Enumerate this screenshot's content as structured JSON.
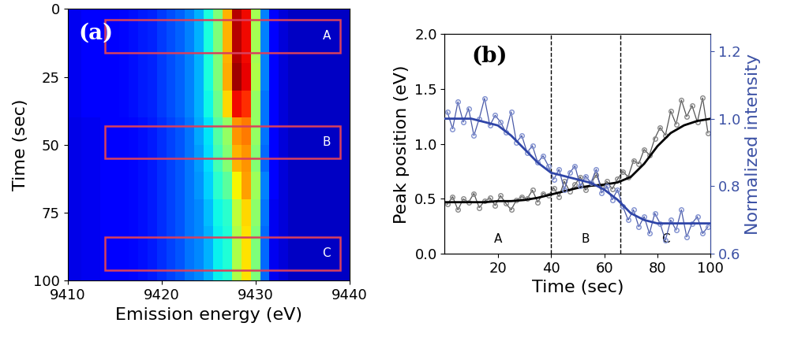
{
  "chart_data": [
    {
      "type": "heatmap",
      "label": "(a)",
      "xlabel": "Emission energy (eV)",
      "ylabel": "Time (sec)",
      "xlim": [
        9410,
        9440
      ],
      "xticks": [
        9410,
        9420,
        9430,
        9440
      ],
      "ylim": [
        100,
        0
      ],
      "yticks": [
        0,
        25,
        50,
        75,
        100
      ],
      "color_range": [
        0,
        1
      ],
      "energies": [
        9410,
        9411,
        9412,
        9413,
        9414,
        9415,
        9416,
        9417,
        9418,
        9419,
        9420,
        9421,
        9422,
        9423,
        9424,
        9425,
        9426,
        9427,
        9428,
        9429,
        9430,
        9431,
        9432,
        9433,
        9434,
        9435,
        9436,
        9437,
        9438,
        9439,
        9440
      ],
      "times": [
        5,
        15,
        25,
        35,
        45,
        55,
        65,
        75,
        85,
        95
      ],
      "cells": [
        [
          0.1,
          0.1,
          0.11,
          0.11,
          0.12,
          0.12,
          0.13,
          0.14,
          0.15,
          0.16,
          0.18,
          0.2,
          0.22,
          0.25,
          0.3,
          0.38,
          0.5,
          0.72,
          0.95,
          0.9,
          0.55,
          0.25,
          0.12,
          0.08,
          0.06,
          0.06,
          0.06,
          0.06,
          0.06,
          0.06,
          0.06
        ],
        [
          0.1,
          0.1,
          0.11,
          0.11,
          0.12,
          0.12,
          0.13,
          0.14,
          0.15,
          0.16,
          0.18,
          0.2,
          0.22,
          0.25,
          0.3,
          0.38,
          0.5,
          0.72,
          0.95,
          0.9,
          0.55,
          0.25,
          0.12,
          0.08,
          0.06,
          0.06,
          0.06,
          0.06,
          0.06,
          0.06,
          0.06
        ],
        [
          0.1,
          0.1,
          0.11,
          0.11,
          0.12,
          0.12,
          0.13,
          0.14,
          0.15,
          0.16,
          0.18,
          0.2,
          0.22,
          0.25,
          0.3,
          0.38,
          0.5,
          0.73,
          0.97,
          0.91,
          0.56,
          0.25,
          0.12,
          0.08,
          0.06,
          0.06,
          0.06,
          0.06,
          0.06,
          0.06,
          0.06
        ],
        [
          0.1,
          0.1,
          0.11,
          0.11,
          0.12,
          0.12,
          0.13,
          0.14,
          0.15,
          0.16,
          0.18,
          0.2,
          0.22,
          0.25,
          0.3,
          0.37,
          0.48,
          0.68,
          0.9,
          0.86,
          0.53,
          0.24,
          0.12,
          0.08,
          0.06,
          0.06,
          0.06,
          0.06,
          0.06,
          0.06,
          0.06
        ],
        [
          0.09,
          0.09,
          0.1,
          0.1,
          0.11,
          0.11,
          0.12,
          0.13,
          0.14,
          0.15,
          0.17,
          0.19,
          0.21,
          0.24,
          0.29,
          0.35,
          0.45,
          0.53,
          0.75,
          0.78,
          0.53,
          0.24,
          0.11,
          0.08,
          0.06,
          0.06,
          0.06,
          0.06,
          0.06,
          0.06,
          0.06
        ],
        [
          0.09,
          0.09,
          0.1,
          0.1,
          0.11,
          0.11,
          0.12,
          0.13,
          0.14,
          0.15,
          0.17,
          0.19,
          0.21,
          0.24,
          0.28,
          0.34,
          0.43,
          0.51,
          0.72,
          0.75,
          0.51,
          0.23,
          0.11,
          0.08,
          0.06,
          0.06,
          0.06,
          0.06,
          0.06,
          0.06,
          0.06
        ],
        [
          0.09,
          0.09,
          0.1,
          0.1,
          0.11,
          0.11,
          0.12,
          0.13,
          0.14,
          0.15,
          0.17,
          0.19,
          0.21,
          0.24,
          0.27,
          0.33,
          0.4,
          0.46,
          0.65,
          0.74,
          0.54,
          0.25,
          0.11,
          0.08,
          0.06,
          0.06,
          0.06,
          0.06,
          0.06,
          0.06,
          0.06
        ],
        [
          0.09,
          0.09,
          0.1,
          0.1,
          0.11,
          0.11,
          0.12,
          0.13,
          0.14,
          0.15,
          0.17,
          0.19,
          0.21,
          0.24,
          0.26,
          0.31,
          0.37,
          0.4,
          0.58,
          0.68,
          0.52,
          0.24,
          0.1,
          0.08,
          0.06,
          0.06,
          0.06,
          0.06,
          0.06,
          0.06,
          0.06
        ],
        [
          0.09,
          0.09,
          0.1,
          0.1,
          0.11,
          0.11,
          0.12,
          0.13,
          0.14,
          0.15,
          0.17,
          0.19,
          0.21,
          0.24,
          0.26,
          0.3,
          0.36,
          0.39,
          0.56,
          0.67,
          0.5,
          0.23,
          0.1,
          0.08,
          0.06,
          0.06,
          0.06,
          0.06,
          0.06,
          0.06,
          0.06
        ],
        [
          0.09,
          0.09,
          0.1,
          0.1,
          0.11,
          0.11,
          0.12,
          0.13,
          0.14,
          0.15,
          0.17,
          0.19,
          0.21,
          0.24,
          0.26,
          0.3,
          0.36,
          0.39,
          0.56,
          0.67,
          0.5,
          0.23,
          0.1,
          0.08,
          0.06,
          0.06,
          0.06,
          0.06,
          0.06,
          0.06,
          0.06
        ]
      ],
      "regions": [
        {
          "label": "A",
          "x": [
            9414,
            9439
          ],
          "y": [
            4,
            16
          ]
        },
        {
          "label": "B",
          "x": [
            9414,
            9439
          ],
          "y": [
            43,
            55
          ]
        },
        {
          "label": "C",
          "x": [
            9414,
            9439
          ],
          "y": [
            84,
            96
          ]
        }
      ]
    },
    {
      "type": "line",
      "label": "(b)",
      "xlabel": "Time (sec)",
      "ylabel": "Peak position (eV)",
      "y2label": "Normalized intensity",
      "xlim": [
        0,
        100
      ],
      "xticks": [
        20,
        40,
        60,
        80,
        100
      ],
      "ylim": [
        0,
        2
      ],
      "yticks": [
        {
          "value": 0,
          "label": "0.0"
        },
        {
          "value": 0.5,
          "label": "0.5"
        },
        {
          "value": 1,
          "label": "1.0"
        },
        {
          "value": 1.5,
          "label": "1.5"
        },
        {
          "value": 2,
          "label": "2.0"
        }
      ],
      "y2lim": [
        0.6,
        1.25
      ],
      "y2ticks": [
        0.6,
        0.8,
        {
          "value": 1,
          "label": "1.0"
        },
        1.2
      ],
      "regions": [
        {
          "label": "A",
          "x": [
            0,
            40
          ]
        },
        {
          "label": "B",
          "x": [
            40,
            66
          ]
        },
        {
          "label": "C",
          "x": [
            66,
            100
          ]
        }
      ],
      "series": [
        {
          "type": "line",
          "marker": "o",
          "line_style": "solid",
          "color": "#555555",
          "x": [
            1,
            3,
            5,
            7,
            9,
            11,
            13,
            15,
            17,
            19,
            21,
            23,
            25,
            27,
            29,
            31,
            33,
            35,
            37,
            39,
            41,
            43,
            45,
            47,
            49,
            51,
            53,
            55,
            57,
            59,
            61,
            63,
            65,
            67,
            69,
            71,
            73,
            75,
            77,
            79,
            81,
            83,
            85,
            87,
            89,
            91,
            93,
            95,
            97,
            99
          ],
          "values": [
            0.45,
            0.52,
            0.4,
            0.5,
            0.47,
            0.55,
            0.42,
            0.48,
            0.51,
            0.44,
            0.53,
            0.46,
            0.4,
            0.49,
            0.52,
            0.5,
            0.58,
            0.47,
            0.55,
            0.53,
            0.6,
            0.52,
            0.66,
            0.57,
            0.63,
            0.7,
            0.58,
            0.64,
            0.72,
            0.61,
            0.66,
            0.59,
            0.68,
            0.75,
            0.7,
            0.85,
            0.82,
            0.95,
            0.9,
            1.05,
            1.15,
            1.08,
            1.3,
            1.18,
            1.4,
            1.25,
            1.35,
            1.2,
            1.42,
            1.1
          ]
        },
        {
          "type": "line",
          "marker": "o",
          "line_style": "solid",
          "color": "#4a5aa8",
          "axis": "y2",
          "x": [
            1,
            3,
            5,
            7,
            9,
            11,
            13,
            15,
            17,
            19,
            21,
            23,
            25,
            27,
            29,
            31,
            33,
            35,
            37,
            39,
            41,
            43,
            45,
            47,
            49,
            51,
            53,
            55,
            57,
            59,
            61,
            63,
            65,
            67,
            69,
            71,
            73,
            75,
            77,
            79,
            81,
            83,
            85,
            87,
            89,
            91,
            93,
            95,
            97,
            99
          ],
          "values": [
            1.02,
            0.97,
            1.05,
            0.99,
            1.03,
            0.95,
            1.0,
            1.06,
            0.98,
            1.01,
            0.99,
            0.96,
            1.02,
            0.93,
            0.95,
            0.9,
            0.92,
            0.87,
            0.89,
            0.86,
            0.82,
            0.85,
            0.79,
            0.84,
            0.86,
            0.8,
            0.83,
            0.81,
            0.85,
            0.78,
            0.8,
            0.76,
            0.79,
            0.74,
            0.7,
            0.73,
            0.68,
            0.71,
            0.66,
            0.72,
            0.69,
            0.64,
            0.7,
            0.67,
            0.73,
            0.65,
            0.69,
            0.71,
            0.66,
            0.68
          ]
        },
        {
          "type": "line",
          "marker": "none",
          "line_style": "solid",
          "color": "#000000",
          "x": [
            0,
            5,
            10,
            15,
            20,
            25,
            30,
            35,
            40,
            45,
            50,
            55,
            60,
            65,
            70,
            75,
            80,
            85,
            90,
            95,
            100
          ],
          "values": [
            0.47,
            0.47,
            0.47,
            0.47,
            0.48,
            0.48,
            0.49,
            0.51,
            0.54,
            0.57,
            0.6,
            0.62,
            0.63,
            0.65,
            0.7,
            0.82,
            0.98,
            1.1,
            1.17,
            1.21,
            1.23
          ]
        },
        {
          "type": "line",
          "marker": "none",
          "line_style": "solid",
          "color": "#2f45a8",
          "axis": "y2",
          "x": [
            0,
            5,
            10,
            15,
            20,
            25,
            30,
            35,
            40,
            45,
            50,
            55,
            60,
            65,
            70,
            75,
            80,
            85,
            90,
            95,
            100
          ],
          "values": [
            1.0,
            1.0,
            1.0,
            0.99,
            0.98,
            0.95,
            0.91,
            0.87,
            0.84,
            0.83,
            0.82,
            0.81,
            0.79,
            0.76,
            0.72,
            0.7,
            0.69,
            0.69,
            0.69,
            0.69,
            0.69
          ]
        }
      ]
    }
  ]
}
